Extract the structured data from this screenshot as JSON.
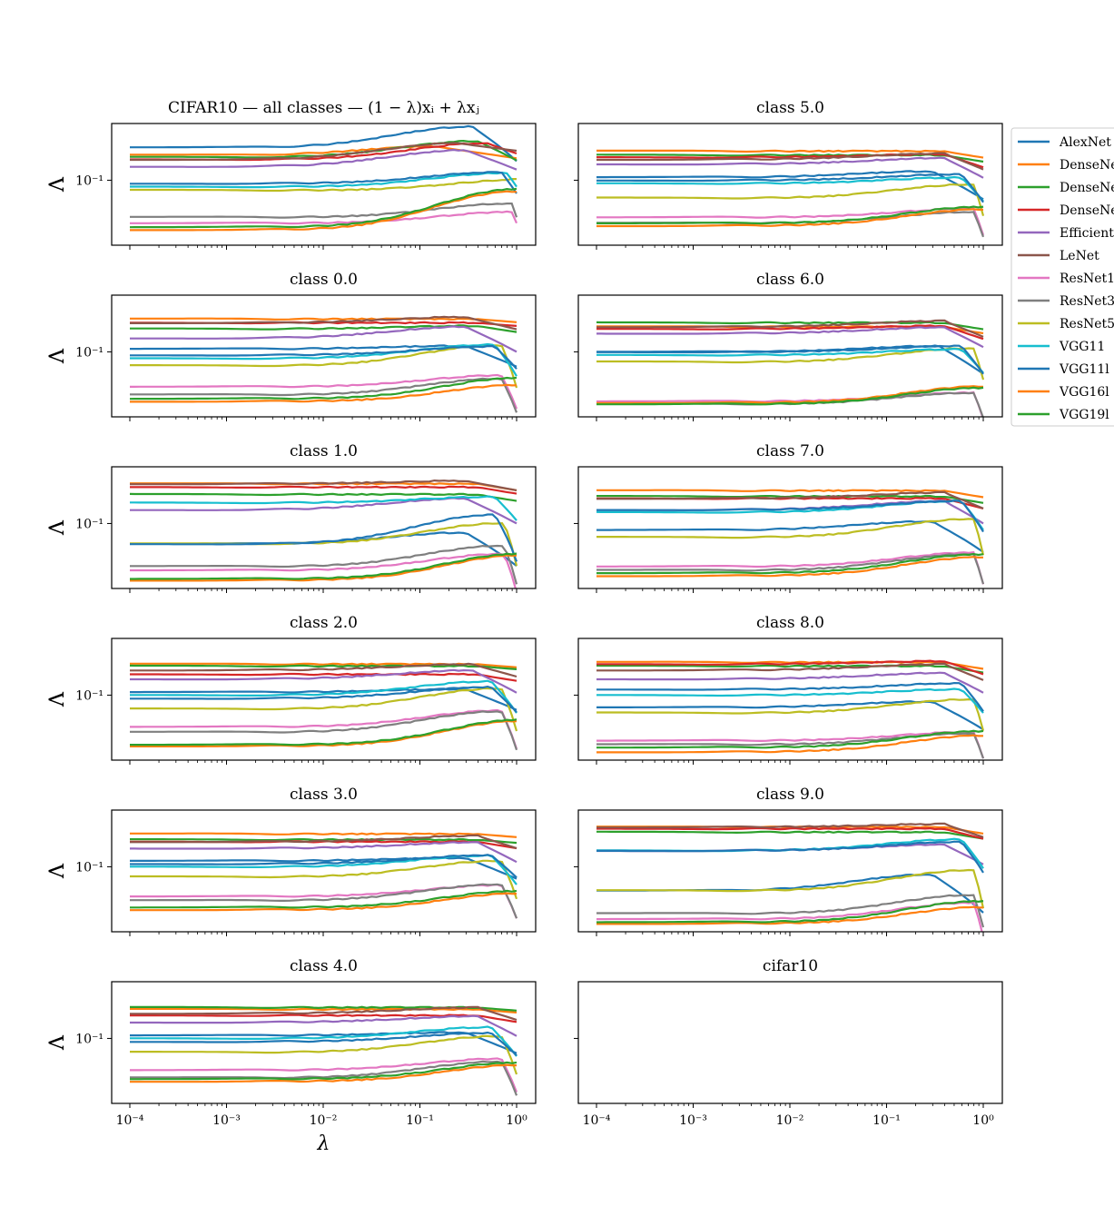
{
  "chart_data": {
    "type": "line",
    "xscale": "log",
    "yscale": "log",
    "xlim": [
      0.0001,
      1
    ],
    "xlabel": "λ",
    "ylabel": "Λ",
    "x_tick_labels": [
      "10⁻⁴",
      "10⁻³",
      "10⁻²",
      "10⁻¹",
      "10⁰"
    ],
    "y_tick_label": "10⁻¹",
    "legend": {
      "placement": "right, clipped at figure edge",
      "entries": [
        "AlexNet",
        "DenseNe",
        "DenseNe",
        "DenseNe",
        "Efficient",
        "LeNet",
        "ResNet1",
        "ResNet3",
        "ResNet5",
        "VGG11",
        "VGG11l",
        "VGG16l",
        "VGG19l"
      ]
    },
    "series": [
      {
        "name": "AlexNet",
        "color": "#1f77b4"
      },
      {
        "name": "DenseNe",
        "color": "#ff7f0e"
      },
      {
        "name": "DenseNe",
        "color": "#2ca02c"
      },
      {
        "name": "DenseNe",
        "color": "#d62728"
      },
      {
        "name": "Efficient",
        "color": "#9467bd"
      },
      {
        "name": "LeNet",
        "color": "#8c564b"
      },
      {
        "name": "ResNet1",
        "color": "#e377c2"
      },
      {
        "name": "ResNet3",
        "color": "#7f7f7f"
      },
      {
        "name": "ResNet5",
        "color": "#bcbd22"
      },
      {
        "name": "VGG11",
        "color": "#17becf"
      },
      {
        "name": "VGG11l",
        "color": "#1f77b4"
      },
      {
        "name": "VGG16l",
        "color": "#ff7f0e"
      },
      {
        "name": "VGG19l",
        "color": "#2ca02c"
      }
    ],
    "panels": [
      {
        "title": "CIFAR10 — all classes — (1 − λ)xᵢ + λxⱼ",
        "col": 0,
        "row": 0,
        "base": [
          0.17,
          0.15,
          0.145,
          0.14,
          0.125,
          0.14,
          0.05,
          0.055,
          0.085,
          0.09,
          0.095,
          0.045,
          0.047
        ],
        "peak": [
          0.35,
          0.15,
          0.4,
          0.5,
          0.3,
          0.25,
          0.95,
          0.9,
          1.4,
          0.8,
          0.7,
          1.0,
          1.1
        ],
        "pfact": [
          1.4,
          1.15,
          1.3,
          1.3,
          1.3,
          1.3,
          1.2,
          1.25,
          1.2,
          1.25,
          1.2,
          1.85,
          1.85
        ],
        "end": [
          0.8,
          0.95,
          0.95,
          1.1,
          0.95,
          1.15,
          1.0,
          1.0,
          1.0,
          1.0,
          0.85,
          1.05,
          1.05
        ]
      },
      {
        "title": "class 5.0",
        "col": 1,
        "row": 0,
        "base": [
          0.105,
          0.16,
          0.15,
          0.145,
          0.13,
          0.14,
          0.055,
          0.05,
          0.075,
          0.095,
          0.1,
          0.048,
          0.05
        ],
        "peak": [
          0.3,
          0.4,
          0.4,
          0.4,
          0.4,
          0.4,
          0.8,
          0.8,
          0.8,
          0.6,
          0.6,
          1.0,
          1.0
        ],
        "pfact": [
          1.1,
          1.0,
          1.0,
          1.05,
          1.1,
          1.1,
          1.15,
          1.2,
          1.25,
          1.1,
          1.1,
          1.3,
          1.3
        ],
        "end": [
          0.7,
          0.9,
          0.9,
          0.85,
          0.8,
          0.85,
          0.75,
          0.8,
          0.75,
          0.75,
          0.7,
          0.7,
          0.7
        ]
      },
      {
        "title": "class 0.0",
        "col": 0,
        "row": 1,
        "base": [
          0.105,
          0.17,
          0.145,
          0.16,
          0.125,
          0.16,
          0.057,
          0.05,
          0.08,
          0.09,
          0.095,
          0.045,
          0.047
        ],
        "peak": [
          0.3,
          0.4,
          0.4,
          0.4,
          0.3,
          0.3,
          0.7,
          0.7,
          0.7,
          0.6,
          0.6,
          1.1,
          1.15
        ],
        "pfact": [
          1.05,
          1.0,
          1.05,
          1.0,
          1.2,
          1.1,
          1.2,
          1.3,
          1.4,
          1.25,
          1.15,
          1.3,
          1.4
        ],
        "end": [
          0.75,
          0.95,
          0.95,
          0.95,
          0.8,
          0.9,
          0.7,
          0.75,
          0.7,
          0.75,
          0.8,
          0.65,
          0.65
        ]
      },
      {
        "title": "class 6.0",
        "col": 1,
        "row": 1,
        "base": [
          0.1,
          0.15,
          0.16,
          0.145,
          0.135,
          0.15,
          0.045,
          0.043,
          0.085,
          0.095,
          0.1,
          0.044,
          0.043
        ],
        "peak": [
          0.35,
          0.4,
          0.4,
          0.4,
          0.4,
          0.4,
          0.8,
          0.8,
          0.8,
          0.6,
          0.6,
          1.0,
          1.0
        ],
        "pfact": [
          1.1,
          1.0,
          1.0,
          1.05,
          1.1,
          1.1,
          1.15,
          1.2,
          1.25,
          1.1,
          1.1,
          1.3,
          1.3
        ],
        "end": [
          0.7,
          0.9,
          0.9,
          0.85,
          0.8,
          0.85,
          0.75,
          0.8,
          0.75,
          0.75,
          0.7,
          0.7,
          0.7
        ]
      },
      {
        "title": "class 1.0",
        "col": 0,
        "row": 2,
        "base": [
          0.072,
          0.19,
          0.16,
          0.18,
          0.125,
          0.19,
          0.047,
          0.05,
          0.072,
          0.14,
          0.072,
          0.04,
          0.041
        ],
        "peak": [
          0.3,
          0.4,
          0.4,
          0.4,
          0.3,
          0.3,
          0.75,
          0.75,
          0.75,
          0.6,
          0.6,
          1.2,
          1.2
        ],
        "pfact": [
          1.2,
          1.0,
          1.0,
          1.0,
          1.2,
          1.05,
          1.3,
          1.4,
          1.4,
          1.1,
          1.6,
          1.5,
          1.5
        ],
        "end": [
          0.7,
          0.9,
          0.9,
          0.9,
          0.8,
          0.9,
          0.7,
          0.75,
          0.7,
          0.75,
          0.75,
          0.65,
          0.65
        ]
      },
      {
        "title": "class 7.0",
        "col": 1,
        "row": 2,
        "base": [
          0.09,
          0.17,
          0.155,
          0.15,
          0.125,
          0.15,
          0.05,
          0.047,
          0.08,
          0.12,
          0.125,
          0.043,
          0.045
        ],
        "peak": [
          0.3,
          0.4,
          0.4,
          0.4,
          0.4,
          0.4,
          0.8,
          0.8,
          0.8,
          0.6,
          0.6,
          1.0,
          1.0
        ],
        "pfact": [
          1.15,
          1.0,
          1.0,
          1.0,
          1.15,
          1.1,
          1.25,
          1.3,
          1.35,
          1.2,
          1.15,
          1.35,
          1.35
        ],
        "end": [
          0.7,
          0.9,
          0.9,
          0.85,
          0.8,
          0.85,
          0.75,
          0.8,
          0.75,
          0.75,
          0.7,
          0.7,
          0.7
        ]
      },
      {
        "title": "class 2.0",
        "col": 0,
        "row": 3,
        "base": [
          0.105,
          0.165,
          0.16,
          0.14,
          0.13,
          0.15,
          0.06,
          0.055,
          0.08,
          0.1,
          0.095,
          0.044,
          0.045
        ],
        "peak": [
          0.3,
          0.4,
          0.4,
          0.4,
          0.35,
          0.35,
          0.7,
          0.7,
          0.7,
          0.55,
          0.55,
          1.2,
          1.25
        ],
        "pfact": [
          1.05,
          1.0,
          1.0,
          1.0,
          1.15,
          1.1,
          1.3,
          1.4,
          1.4,
          1.25,
          1.2,
          1.5,
          1.5
        ],
        "end": [
          0.75,
          0.95,
          0.95,
          0.9,
          0.8,
          0.9,
          0.7,
          0.75,
          0.7,
          0.75,
          0.8,
          0.65,
          0.65
        ]
      },
      {
        "title": "class 8.0",
        "col": 1,
        "row": 3,
        "base": [
          0.082,
          0.17,
          0.16,
          0.165,
          0.13,
          0.15,
          0.048,
          0.045,
          0.075,
          0.1,
          0.11,
          0.04,
          0.043
        ],
        "peak": [
          0.3,
          0.4,
          0.4,
          0.4,
          0.4,
          0.4,
          0.8,
          0.8,
          0.8,
          0.6,
          0.6,
          1.0,
          1.0
        ],
        "pfact": [
          1.1,
          1.0,
          1.0,
          1.05,
          1.1,
          1.1,
          1.15,
          1.2,
          1.25,
          1.1,
          1.1,
          1.3,
          1.3
        ],
        "end": [
          0.7,
          0.9,
          0.9,
          0.85,
          0.8,
          0.85,
          0.75,
          0.8,
          0.75,
          0.75,
          0.7,
          0.7,
          0.7
        ]
      },
      {
        "title": "class 3.0",
        "col": 0,
        "row": 4,
        "base": [
          0.11,
          0.17,
          0.155,
          0.15,
          0.135,
          0.15,
          0.062,
          0.058,
          0.085,
          0.1,
          0.105,
          0.05,
          0.052
        ],
        "peak": [
          0.3,
          0.4,
          0.4,
          0.4,
          0.4,
          0.4,
          0.7,
          0.7,
          0.7,
          0.55,
          0.55,
          1.1,
          1.1
        ],
        "pfact": [
          1.05,
          1.0,
          1.0,
          1.0,
          1.1,
          1.1,
          1.2,
          1.3,
          1.3,
          1.2,
          1.15,
          1.3,
          1.3
        ],
        "end": [
          0.75,
          0.95,
          0.95,
          0.9,
          0.8,
          0.9,
          0.7,
          0.75,
          0.7,
          0.75,
          0.8,
          0.65,
          0.65
        ]
      },
      {
        "title": "class 9.0",
        "col": 1,
        "row": 4,
        "base": [
          0.068,
          0.19,
          0.175,
          0.185,
          0.13,
          0.19,
          0.043,
          0.047,
          0.068,
          0.13,
          0.13,
          0.04,
          0.041
        ],
        "peak": [
          0.3,
          0.4,
          0.4,
          0.4,
          0.4,
          0.4,
          0.8,
          0.8,
          0.8,
          0.6,
          0.6,
          1.0,
          1.0
        ],
        "pfact": [
          1.3,
          1.0,
          1.0,
          1.0,
          1.1,
          1.05,
          1.3,
          1.35,
          1.4,
          1.2,
          1.15,
          1.3,
          1.4
        ],
        "end": [
          0.7,
          0.9,
          0.9,
          0.85,
          0.8,
          0.85,
          0.75,
          0.8,
          0.75,
          0.75,
          0.7,
          0.7,
          0.7
        ]
      },
      {
        "title": "class 4.0",
        "col": 0,
        "row": 5,
        "base": [
          0.105,
          0.16,
          0.165,
          0.145,
          0.13,
          0.15,
          0.06,
          0.053,
          0.08,
          0.1,
          0.095,
          0.05,
          0.052
        ],
        "peak": [
          0.3,
          0.4,
          0.4,
          0.4,
          0.4,
          0.4,
          0.7,
          0.7,
          0.7,
          0.55,
          0.55,
          1.1,
          1.1
        ],
        "pfact": [
          1.05,
          1.0,
          1.0,
          1.0,
          1.1,
          1.1,
          1.2,
          1.3,
          1.3,
          1.2,
          1.15,
          1.3,
          1.3
        ],
        "end": [
          0.75,
          0.95,
          0.95,
          0.9,
          0.8,
          0.9,
          0.7,
          0.75,
          0.7,
          0.75,
          0.8,
          0.65,
          0.65
        ]
      },
      {
        "title": "cifar10",
        "col": 1,
        "row": 5,
        "empty": true
      }
    ]
  }
}
